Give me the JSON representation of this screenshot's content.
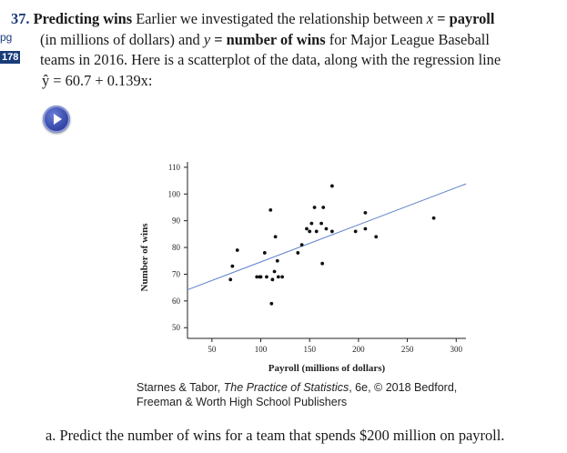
{
  "problem": {
    "number": "37.",
    "heading": "Predicting wins",
    "intro": "Earlier we investigated the relationship between",
    "x_var": "x",
    "x_def": " = payroll",
    "line2": "(in millions of dollars) and",
    "y_var": "y",
    "y_def": " = number of wins",
    "line2_tail": "for Major League Baseball",
    "line3": "teams in 2016. Here is a scatterplot of the data, along with the regression line",
    "equation": "ŷ = 60.7 + 0.139x:"
  },
  "margin": {
    "pg": "pg",
    "page_ref": "178"
  },
  "video": {
    "icon": "play-icon"
  },
  "chart_data": {
    "type": "scatter",
    "title": "",
    "xlabel": "Payroll (millions of dollars)",
    "ylabel": "Number of wins",
    "xlim": [
      25,
      310
    ],
    "ylim": [
      46,
      112
    ],
    "xticks": [
      "50",
      "100",
      "150",
      "200",
      "250",
      "300"
    ],
    "yticks": [
      "50",
      "60",
      "70",
      "80",
      "90",
      "100",
      "110"
    ],
    "x": [
      69,
      71,
      76,
      96,
      99,
      100,
      104,
      106,
      110,
      111,
      112,
      114,
      115,
      117,
      118,
      122,
      138,
      142,
      147,
      150,
      152,
      155,
      157,
      162,
      163,
      164,
      167,
      173,
      173,
      197,
      207,
      207,
      218,
      277
    ],
    "y": [
      68,
      73,
      79,
      69,
      69,
      69,
      78,
      69,
      94,
      59,
      68,
      71,
      84,
      75,
      69,
      69,
      78,
      81,
      87,
      86,
      89,
      95,
      86,
      89,
      74,
      95,
      87,
      86,
      103,
      86,
      87,
      93,
      84,
      91
    ],
    "regression": {
      "intercept": 60.7,
      "slope": 0.139,
      "label": "ŷ = 60.7 + 0.139x"
    }
  },
  "caption": {
    "line1_prefix": "Starnes & Tabor, ",
    "book_title": "The Practice of Statistics",
    "line1_suffix": ", 6e, © 2018 Bedford,",
    "line2": "Freeman & Worth High School Publishers"
  },
  "question": "a. Predict the number of wins for a team that spends $200 million on payroll."
}
